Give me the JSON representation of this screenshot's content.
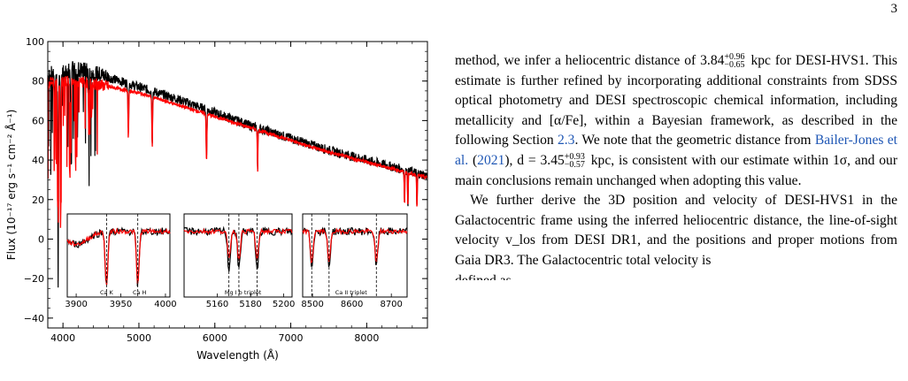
{
  "page": {
    "number": "3"
  },
  "figure": {
    "chart_data": [
      {
        "type": "line",
        "xlabel": "Wavelength (Å)",
        "ylabel": "Flux (10⁻¹⁷ erg s⁻¹ cm⁻² Å⁻¹)",
        "xlim": [
          3800,
          8800
        ],
        "ylim": [
          -45,
          100
        ],
        "xticks": [
          4000,
          5000,
          6000,
          7000,
          8000
        ],
        "yticks": [
          -40,
          -20,
          0,
          20,
          40,
          60,
          80,
          100
        ],
        "series": [
          {
            "color": "#000000",
            "x": [
              3800,
              3900,
              4000,
              4200,
              4500,
              5000,
              5500,
              6000,
              6500,
              7000,
              7500,
              8000,
              8500,
              8800
            ],
            "y": [
              83,
              84,
              85,
              86,
              83,
              77,
              71,
              64,
              57,
              51,
              45,
              40,
              35,
              32
            ]
          },
          {
            "color": "#ff0000",
            "x": [
              3800,
              3900,
              4000,
              4200,
              4500,
              5000,
              5500,
              6000,
              6500,
              7000,
              7500,
              8000,
              8500,
              8800
            ],
            "y": [
              79,
              80,
              80,
              80,
              78,
              74,
              68,
              62,
              56,
              50,
              44,
              39,
              34,
              31
            ]
          }
        ],
        "absorption_lines": [
          3889,
          3934,
          3970,
          4102,
          4340,
          4861,
          5175,
          5890,
          6563,
          8498,
          8542,
          8662
        ]
      },
      {
        "type": "line",
        "annotations": [
          "Ca K",
          "Ca H"
        ],
        "xlim": [
          3890,
          4005
        ],
        "xticks": [
          3900,
          3950,
          4000
        ],
        "marked_lines": [
          3934,
          3969
        ],
        "series": [
          {
            "color": "#000000",
            "lines": [
              3934,
              3969
            ],
            "depth": 0.85
          },
          {
            "color": "#ff0000",
            "lines": [
              3934,
              3969
            ],
            "depth": 0.85
          }
        ]
      },
      {
        "type": "line",
        "annotations": [
          "Mg I b triplet"
        ],
        "xlim": [
          5140,
          5205
        ],
        "xticks": [
          5160,
          5180,
          5200
        ],
        "marked_lines": [
          5167,
          5173,
          5184
        ],
        "series": [
          {
            "color": "#000000",
            "lines": [
              5167,
              5173,
              5184
            ],
            "depth": 0.6
          },
          {
            "color": "#ff0000",
            "lines": [
              5167,
              5173,
              5184
            ],
            "depth": 0.45
          }
        ]
      },
      {
        "type": "line",
        "annotations": [
          "Ca II triplet"
        ],
        "xlim": [
          8475,
          8740
        ],
        "xticks": [
          8500,
          8600,
          8700
        ],
        "marked_lines": [
          8498,
          8542,
          8662
        ],
        "series": [
          {
            "color": "#000000",
            "lines": [
              8498,
              8542,
              8662
            ],
            "depth": 0.55
          },
          {
            "color": "#ff0000",
            "lines": [
              8498,
              8542,
              8662
            ],
            "depth": 0.5
          }
        ]
      }
    ]
  },
  "text": {
    "p1_a": "method, we infer a heliocentric distance of 3.84",
    "p1_sup1": "+0.96",
    "p1_sub1": "−0.65",
    "p1_b": " kpc for DESI-HVS1. This estimate is further refined by incorporating additional constraints from SDSS optical photometry and DESI spectroscopic chemical information, including metallicity and [α/Fe], within a Bayesian framework, as described in the following Section ",
    "p1_link1": "2.3",
    "p1_c": ". We note that the geometric distance from ",
    "p1_link2": "Bailer-Jones et al.",
    "p1_d": " (",
    "p1_link3": "2021",
    "p1_e": "), d = 3.45",
    "p1_sup2": "+0.93",
    "p1_sub2": "−0.57",
    "p1_f": " kpc, is consistent with our estimate within 1σ, and our main conclusions remain unchanged when adopting this value.",
    "p2": "We further derive the 3D position and velocity of DESI-HVS1 in the Galactocentric frame using the inferred heliocentric distance, the line-of-sight velocity v_los from DESI DR1, and the positions and proper motions from Gaia DR3. The Galactocentric total velocity is",
    "p2_tail": "defined as"
  }
}
